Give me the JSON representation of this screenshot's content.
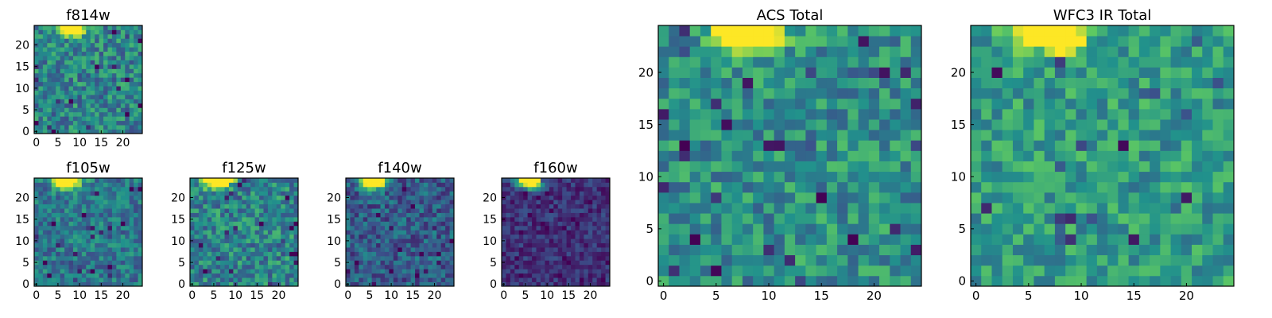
{
  "chart_data": [
    {
      "type": "heatmap",
      "title": "f814w",
      "grid_size": 25,
      "peak_center": 8,
      "noise": 0.22,
      "base": 0.45,
      "xticks": [
        "0",
        "5",
        "10",
        "15",
        "20"
      ],
      "yticks": [
        "0",
        "5",
        "10",
        "15",
        "20"
      ],
      "xlim": [
        -0.5,
        24.5
      ],
      "ylim": [
        -0.5,
        24.5
      ]
    },
    {
      "type": "heatmap",
      "title": "f105w",
      "grid_size": 25,
      "peak_center": 7,
      "noise": 0.18,
      "base": 0.4,
      "xticks": [
        "0",
        "5",
        "10",
        "15",
        "20"
      ],
      "yticks": [
        "0",
        "5",
        "10",
        "15",
        "20"
      ],
      "xlim": [
        -0.5,
        24.5
      ],
      "ylim": [
        -0.5,
        24.5
      ]
    },
    {
      "type": "heatmap",
      "title": "f125w",
      "grid_size": 25,
      "peak_center": 6,
      "noise": 0.22,
      "base": 0.45,
      "xticks": [
        "0",
        "5",
        "10",
        "15",
        "20"
      ],
      "yticks": [
        "0",
        "5",
        "10",
        "15",
        "20"
      ],
      "xlim": [
        -0.5,
        24.5
      ],
      "ylim": [
        -0.5,
        24.5
      ]
    },
    {
      "type": "heatmap",
      "title": "f140w",
      "grid_size": 25,
      "peak_center": 6,
      "noise": 0.18,
      "base": 0.3,
      "xticks": [
        "0",
        "5",
        "10",
        "15",
        "20"
      ],
      "yticks": [
        "0",
        "5",
        "10",
        "15",
        "20"
      ],
      "xlim": [
        -0.5,
        24.5
      ],
      "ylim": [
        -0.5,
        24.5
      ]
    },
    {
      "type": "heatmap",
      "title": "f160w",
      "grid_size": 25,
      "peak_center": 6,
      "noise": 0.12,
      "base": 0.15,
      "xticks": [
        "0",
        "5",
        "10",
        "15",
        "20"
      ],
      "yticks": [
        "0",
        "5",
        "10",
        "15",
        "20"
      ],
      "xlim": [
        -0.5,
        24.5
      ],
      "ylim": [
        -0.5,
        24.5
      ]
    },
    {
      "type": "heatmap",
      "title": "ACS Total",
      "grid_size": 25,
      "peak_center": 8,
      "noise": 0.2,
      "base": 0.5,
      "xticks": [
        "0",
        "5",
        "10",
        "15",
        "20"
      ],
      "yticks": [
        "0",
        "5",
        "10",
        "15",
        "20"
      ],
      "xlim": [
        -0.5,
        24.5
      ],
      "ylim": [
        -0.5,
        24.5
      ]
    },
    {
      "type": "heatmap",
      "title": "WFC3 IR Total",
      "grid_size": 25,
      "peak_center": 7,
      "noise": 0.18,
      "base": 0.55,
      "xticks": [
        "0",
        "5",
        "10",
        "15",
        "20"
      ],
      "yticks": [
        "0",
        "5",
        "10",
        "15",
        "20"
      ],
      "xlim": [
        -0.5,
        24.5
      ],
      "ylim": [
        -0.5,
        24.5
      ]
    }
  ],
  "colors": {
    "colormap": "viridis",
    "stops": [
      "#440154",
      "#3b528b",
      "#21918c",
      "#5ec962",
      "#fde725"
    ]
  }
}
